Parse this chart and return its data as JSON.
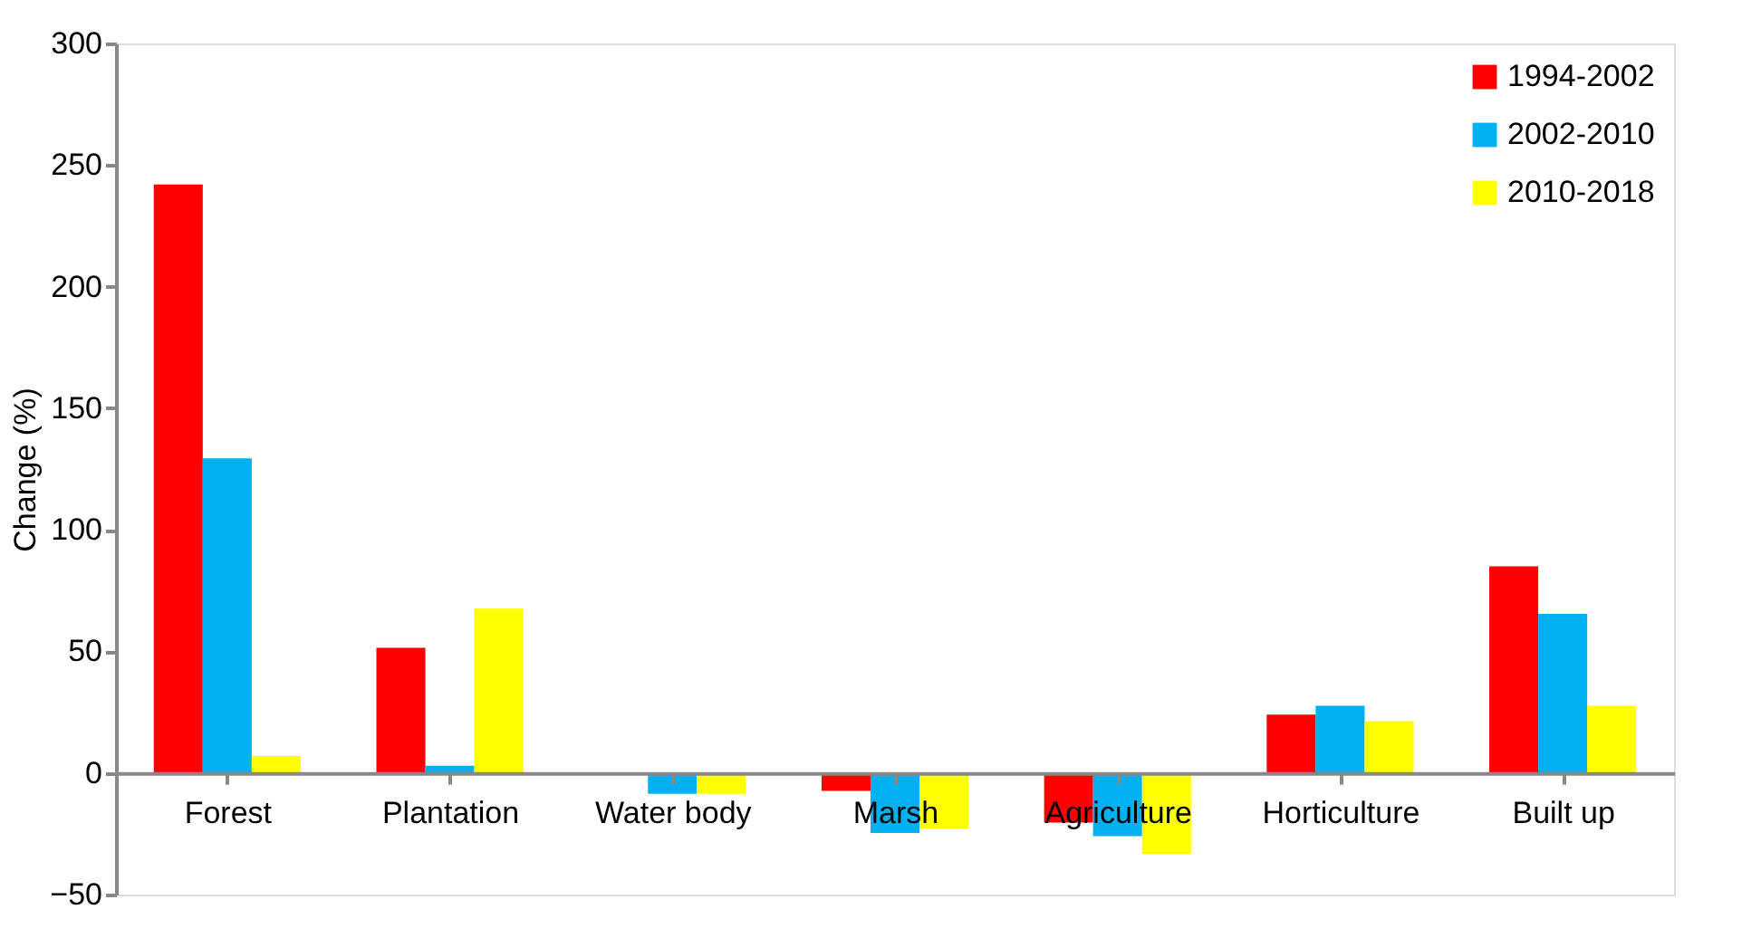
{
  "chart_data": {
    "type": "bar",
    "ylabel": "Change (%)",
    "categories": [
      "Forest",
      "Plantation",
      "Water body",
      "Marsh",
      "Agriculture",
      "Horticulture",
      "Built up"
    ],
    "series": [
      {
        "name": "1994-2002",
        "color": "#ff0000",
        "values": [
          242,
          51.5,
          null,
          -7.4,
          -20.4,
          24,
          85
        ]
      },
      {
        "name": "2002-2010",
        "color": "#00b0f0",
        "values": [
          129.4,
          3,
          -8.6,
          -24.7,
          -26,
          27.6,
          65.4
        ]
      },
      {
        "name": "2010-2018",
        "color": "#ffff00",
        "values": [
          7,
          67.6,
          -8.6,
          -22.8,
          -33.3,
          21.3,
          27.6
        ]
      }
    ],
    "ylim": [
      -50,
      300
    ],
    "yticks": [
      -50,
      0,
      50,
      100,
      150,
      200,
      250,
      300
    ],
    "grid": false,
    "legend": "top right"
  }
}
